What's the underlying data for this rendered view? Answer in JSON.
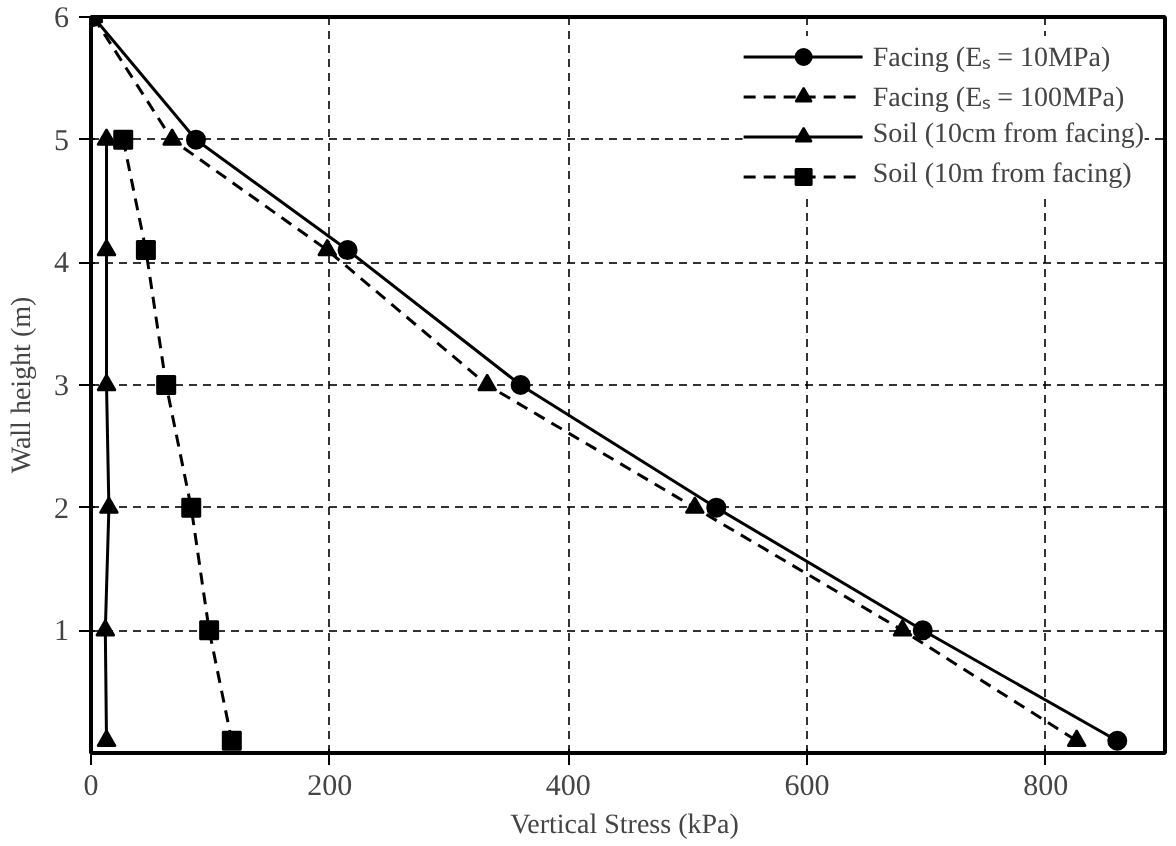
{
  "chart_data": {
    "type": "line",
    "xlabel": "Vertical Stress  (kPa)",
    "ylabel": "Wall height (m)",
    "xlim": [
      0,
      900
    ],
    "ylim": [
      0,
      6
    ],
    "xticks": [
      0,
      200,
      400,
      600,
      800
    ],
    "yticks": [
      1,
      2,
      3,
      4,
      5,
      6
    ],
    "grid": true,
    "legend": "top right",
    "series": [
      {
        "name": "Facing (Eₛ = 10MPa)",
        "color": "#000000",
        "marker": "circle",
        "line_style": "solid",
        "x": [
          2,
          88,
          215,
          360,
          524,
          697,
          860
        ],
        "values": [
          6,
          5,
          4.1,
          3,
          2,
          1,
          0.1
        ]
      },
      {
        "name": "Facing (Eₛ = 100MPa)",
        "color": "#000000",
        "marker": "triangle",
        "line_style": "dashed",
        "x": [
          2,
          68,
          198,
          332,
          506,
          680,
          826
        ],
        "values": [
          6,
          5,
          4.1,
          3,
          2,
          1,
          0.1
        ]
      },
      {
        "name": "Soil (10cm from facing)",
        "color": "#000000",
        "marker": "triangle",
        "line_style": "solid",
        "x": [
          13,
          13,
          13,
          15,
          12,
          13
        ],
        "values": [
          5,
          4.1,
          3,
          2,
          1,
          0.1
        ]
      },
      {
        "name": "Soil (10m from facing)",
        "color": "#000000",
        "marker": "square",
        "line_style": "dashed",
        "x": [
          27,
          46,
          63,
          84,
          99,
          118
        ],
        "values": [
          5,
          4.1,
          3,
          2,
          1,
          0.1
        ]
      }
    ]
  }
}
